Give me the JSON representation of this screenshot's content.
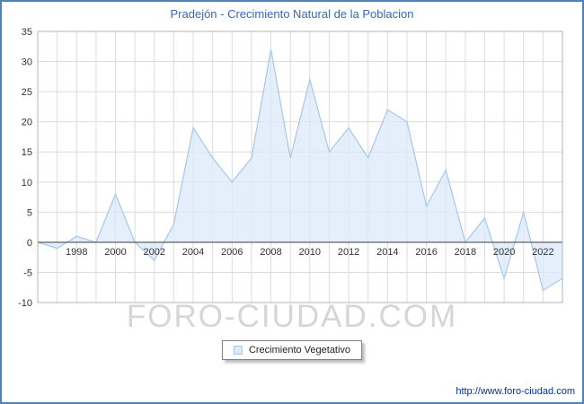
{
  "window": {
    "border_color": "#4f81bd"
  },
  "chart_data": {
    "type": "area",
    "title": "Pradejón - Crecimiento Natural de la Poblacion",
    "series_name": "Crecimiento Vegetativo",
    "x": [
      1996,
      1997,
      1998,
      1999,
      2000,
      2001,
      2002,
      2003,
      2004,
      2005,
      2006,
      2007,
      2008,
      2009,
      2010,
      2011,
      2012,
      2013,
      2014,
      2015,
      2016,
      2017,
      2018,
      2019,
      2020,
      2021,
      2022,
      2023
    ],
    "values": [
      0,
      -1,
      1,
      0,
      8,
      0,
      -3,
      3,
      19,
      14,
      10,
      14,
      32,
      14,
      27,
      15,
      19,
      14,
      22,
      20,
      6,
      12,
      0,
      4,
      -6,
      5,
      -8,
      -6
    ],
    "ylim": [
      -10,
      35
    ],
    "yticks": [
      35,
      30,
      25,
      20,
      15,
      10,
      5,
      0,
      -5,
      -10
    ],
    "xticks": [
      1998,
      2000,
      2002,
      2004,
      2006,
      2008,
      2010,
      2012,
      2014,
      2016,
      2018,
      2020,
      2022
    ],
    "baseline": 0,
    "grid": true,
    "legend_position": "bottom-center",
    "colors": {
      "fill": "#dbe9f9",
      "line": "#a6c8ea",
      "grid": "#dcdcdc",
      "zero_line": "#3c3c3c",
      "plot_border": "#b5b5b5",
      "title": "#3a67b1",
      "tick_text": "#333333"
    }
  },
  "legend": {
    "label": "Crecimiento Vegetativo"
  },
  "watermark": "FORO-CIUDAD.COM",
  "footer": {
    "url": "http://www.foro-ciudad.com"
  }
}
